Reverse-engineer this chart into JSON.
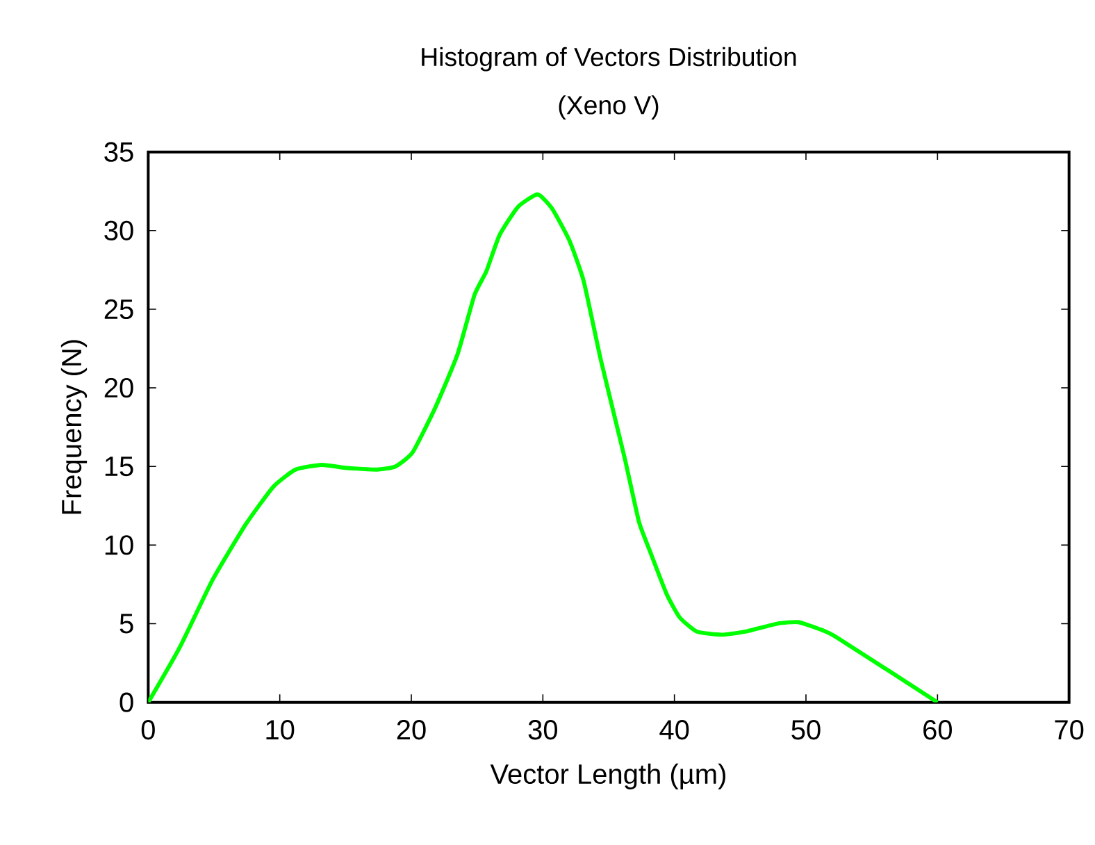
{
  "chart_data": {
    "type": "line",
    "title": "Histogram of Vectors Distribution",
    "subtitle": "(Xeno V)",
    "xlabel": "Vector Length (µm)",
    "ylabel": "Frequency (N)",
    "series": [
      {
        "color": "#00ff00",
        "x": [
          0,
          2.4,
          4.9,
          7.4,
          9.5,
          11.2,
          13.2,
          15.1,
          17.4,
          18.8,
          20.1,
          21.8,
          23.5,
          24.8,
          25.7,
          26.7,
          28.1,
          29.6,
          30.7,
          32.0,
          33.1,
          34.4,
          36.2,
          37.3,
          38.1,
          39.4,
          40.4,
          41.7,
          43.6,
          45.4,
          47.8,
          49.4,
          51.2,
          52.4,
          60
        ],
        "values": [
          0,
          3.5,
          7.8,
          11.3,
          13.7,
          14.8,
          15.1,
          14.9,
          14.8,
          15.0,
          15.9,
          18.7,
          22.1,
          25.9,
          27.4,
          29.7,
          31.5,
          32.3,
          31.4,
          29.4,
          26.8,
          21.8,
          15.6,
          11.5,
          9.7,
          6.9,
          5.4,
          4.5,
          4.3,
          4.5,
          5.0,
          5.1,
          4.6,
          4.1,
          0
        ]
      }
    ],
    "xlim": [
      0,
      70
    ],
    "ylim": [
      0,
      35
    ],
    "xticks": [
      0,
      10,
      20,
      30,
      40,
      50,
      60,
      70
    ],
    "yticks": [
      0,
      5,
      10,
      15,
      20,
      25,
      30,
      35
    ],
    "grid": false,
    "marker": "none",
    "line_style": "solid"
  }
}
